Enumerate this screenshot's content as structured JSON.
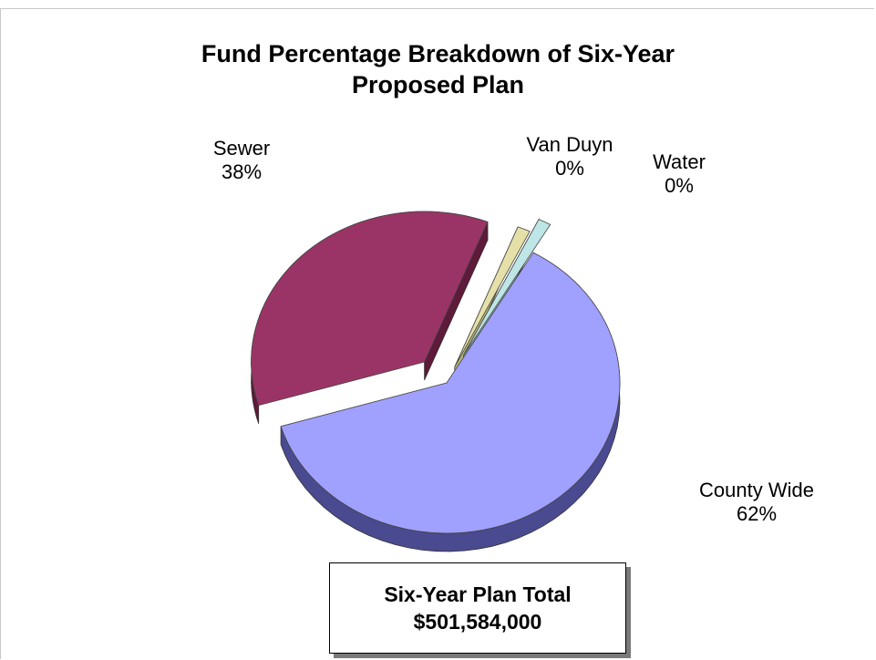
{
  "chart_data": {
    "type": "pie",
    "title_lines": [
      "Fund Percentage Breakdown of Six-Year",
      "Proposed Plan"
    ],
    "slices": [
      {
        "name": "Sewer",
        "value": 38,
        "label": "38%",
        "color": "#9b3466",
        "side": "#5e1a3a"
      },
      {
        "name": "Van Duyn",
        "value": 0,
        "label": "0%",
        "color": "#e4e0a8",
        "side": "#b8b47a"
      },
      {
        "name": "Water",
        "value": 0,
        "label": "0%",
        "color": "#bfe6e6",
        "side": "#8cbcbc"
      },
      {
        "name": "County Wide",
        "value": 62,
        "label": "62%",
        "color": "#a0a0ff",
        "side": "#4a4a90"
      }
    ],
    "legend": "none",
    "total_box": {
      "line1": "Six-Year Plan Total",
      "line2": "$501,584,000"
    }
  }
}
